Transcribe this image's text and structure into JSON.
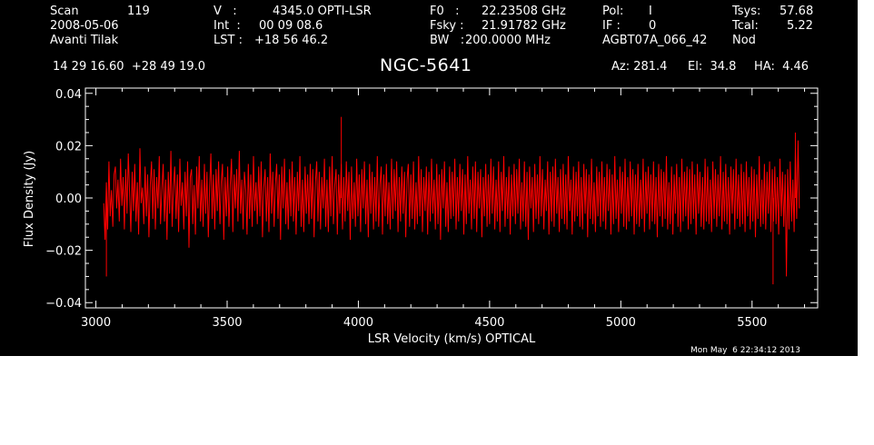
{
  "header": {
    "scan_label": "Scan",
    "scan_value": "119",
    "date": "2008-05-06",
    "observer": "Avanti Tilak",
    "v_label": "V   :",
    "v_value": "4345.0 OPTI-LSR",
    "int_label": "Int  :",
    "int_value": "00 09 08.6",
    "lst_label": "LST :",
    "lst_value": "+18 56 46.2",
    "f0_label": "F0   :",
    "f0_value": "22.23508 GHz",
    "fsky_label": "Fsky :",
    "fsky_value": "21.91782 GHz",
    "bw_label": "BW   :",
    "bw_value": "200.0000 MHz",
    "pol_label": "Pol:",
    "pol_value": "I",
    "if_label": "IF :",
    "if_value": "0",
    "project": "AGBT07A_066_42",
    "tsys_label": "Tsys:",
    "tsys_value": "57.68",
    "tcal_label": "Tcal:",
    "tcal_value": "5.22",
    "procedure": "Nod",
    "coords": "14 29 16.60  +28 49 19.0",
    "az": "Az: 281.4",
    "el": "El:  34.8",
    "ha": "HA:  4.46"
  },
  "timestamp": "Mon May  6 22:34:12 2013",
  "chart_data": {
    "type": "line",
    "title": "NGC-5641",
    "xlabel": "LSR Velocity (km/s) OPTICAL",
    "ylabel": "Flux Density (Jy)",
    "xlim": [
      2960,
      5750
    ],
    "ylim": [
      -0.042,
      0.042
    ],
    "xticks": [
      3000,
      3500,
      4000,
      4500,
      5000,
      5500
    ],
    "xtick_labels": [
      "3000",
      "3500",
      "4000",
      "4500",
      "5000",
      "5500"
    ],
    "yticks": [
      -0.04,
      -0.02,
      0.0,
      0.02,
      0.04
    ],
    "ytick_labels": [
      "−0.04",
      "−0.02",
      "0.00",
      "0.02",
      "0.04"
    ],
    "grid": false,
    "series": [
      {
        "color": "#ff0000",
        "x_start": 3030,
        "x_end": 5680,
        "y": [
          -0.002,
          -0.016,
          0.006,
          -0.012,
          0.014,
          -0.007,
          0.003,
          -0.011,
          0.009,
          0.012,
          -0.004,
          0.007,
          -0.009,
          0.015,
          -0.003,
          0.008,
          -0.012,
          0.011,
          -0.006,
          0.017,
          0.002,
          -0.013,
          0.01,
          -0.005,
          0.013,
          -0.009,
          0.006,
          -0.014,
          0.019,
          -0.002,
          0.004,
          -0.01,
          0.012,
          -0.007,
          0.009,
          -0.015,
          0.005,
          0.014,
          -0.008,
          0.011,
          -0.012,
          0.008,
          -0.004,
          0.016,
          -0.01,
          0.003,
          0.013,
          -0.009,
          0.007,
          -0.016,
          0.01,
          -0.006,
          0.018,
          -0.011,
          0.004,
          0.012,
          -0.008,
          0.009,
          -0.013,
          0.015,
          -0.003,
          0.006,
          -0.012,
          0.01,
          -0.007,
          0.014,
          -0.019,
          0.008,
          0.011,
          -0.01,
          0.005,
          -0.014,
          0.012,
          -0.004,
          0.016,
          -0.009,
          0.007,
          -0.011,
          0.013,
          -0.006,
          0.01,
          -0.015,
          0.004,
          0.017,
          -0.008,
          0.009,
          -0.012,
          0.011,
          -0.005,
          0.014,
          -0.01,
          0.006,
          0.013,
          -0.016,
          0.008,
          -0.007,
          0.012,
          -0.011,
          0.005,
          0.015,
          -0.013,
          0.009,
          -0.004,
          0.011,
          -0.009,
          0.018,
          -0.006,
          0.007,
          -0.012,
          0.01,
          0.003,
          -0.014,
          0.013,
          -0.008,
          0.009,
          -0.011,
          0.016,
          -0.005,
          0.006,
          -0.01,
          0.012,
          -0.007,
          0.014,
          -0.015,
          0.004,
          0.011,
          -0.009,
          0.008,
          -0.013,
          0.017,
          -0.006,
          0.01,
          -0.011,
          0.005,
          0.013,
          -0.008,
          0.009,
          -0.016,
          0.012,
          -0.004,
          0.015,
          -0.01,
          0.006,
          -0.012,
          0.011,
          -0.007,
          0.014,
          -0.009,
          0.008,
          -0.014,
          0.01,
          -0.005,
          0.016,
          -0.011,
          0.007,
          -0.013,
          0.012,
          -0.006,
          0.009,
          -0.01,
          0.013,
          -0.008,
          0.011,
          -0.015,
          0.006,
          0.014,
          -0.009,
          0.01,
          -0.012,
          0.008,
          -0.004,
          0.015,
          -0.011,
          0.007,
          -0.013,
          0.012,
          -0.007,
          0.016,
          -0.01,
          0.005,
          0.011,
          -0.014,
          0.009,
          -0.006,
          0.013,
          -0.012,
          0.008,
          -0.009,
          0.014,
          -0.005,
          0.01,
          -0.016,
          0.012,
          -0.008,
          0.006,
          -0.011,
          0.015,
          -0.007,
          0.009,
          -0.013,
          0.011,
          -0.004,
          0.014,
          -0.01,
          0.007,
          -0.015,
          0.013,
          -0.006,
          0.01,
          -0.012,
          0.008,
          -0.009,
          0.016,
          -0.011,
          0.005,
          0.012,
          -0.014,
          0.009,
          -0.007,
          0.013,
          -0.01,
          0.006,
          -0.012,
          0.015,
          -0.008,
          0.011,
          -0.005,
          0.014,
          -0.013,
          0.008,
          -0.009,
          0.012,
          -0.006,
          0.01,
          -0.015,
          0.007,
          0.013,
          -0.011,
          0.009,
          -0.008,
          0.014,
          -0.012,
          0.006,
          -0.01,
          0.016,
          -0.007,
          0.011,
          -0.013,
          0.008,
          -0.005,
          0.012,
          -0.014,
          0.01,
          -0.009,
          0.015,
          -0.006,
          0.007,
          -0.012,
          0.013,
          -0.01,
          0.009,
          -0.016,
          0.011,
          -0.004,
          0.014,
          -0.011,
          0.006,
          -0.013,
          0.012,
          -0.008,
          0.01,
          -0.007,
          0.015,
          -0.012,
          0.008,
          -0.009,
          0.013,
          -0.005,
          0.011,
          -0.014,
          0.009,
          -0.01,
          0.016,
          -0.006,
          0.007,
          -0.012,
          0.012,
          -0.008,
          0.014,
          -0.013,
          0.01,
          -0.004,
          0.011,
          -0.015,
          0.008,
          -0.007,
          0.013,
          -0.011,
          0.009,
          -0.01,
          0.015,
          -0.006,
          0.012,
          -0.012,
          0.007,
          -0.009,
          0.014,
          -0.013,
          0.01,
          -0.005,
          0.016,
          -0.011,
          0.008,
          -0.008,
          0.012,
          -0.014,
          0.009,
          -0.007,
          0.013,
          -0.01,
          0.011,
          -0.006,
          0.015,
          -0.012,
          0.006,
          -0.009,
          0.014,
          -0.011,
          0.01,
          -0.016,
          0.012,
          -0.004,
          0.008,
          -0.013,
          0.013,
          -0.008,
          0.009,
          -0.01,
          0.016,
          -0.007,
          0.011,
          -0.012,
          0.007,
          -0.005,
          0.014,
          -0.014,
          0.01,
          -0.009,
          0.012,
          -0.011,
          0.015,
          -0.006,
          0.008,
          -0.013,
          0.011,
          -0.008,
          0.013,
          -0.01,
          0.009,
          -0.012,
          0.016,
          -0.005,
          0.007,
          -0.014,
          0.012,
          -0.009,
          0.01,
          -0.007,
          0.014,
          -0.011,
          0.008,
          -0.012,
          0.013,
          -0.006,
          0.011,
          -0.015,
          0.009,
          -0.008,
          0.015,
          -0.01,
          0.006,
          -0.013,
          0.012,
          -0.007,
          0.01,
          -0.011,
          0.014,
          -0.009,
          0.008,
          -0.012,
          0.013,
          -0.005,
          0.011,
          -0.014,
          0.009,
          -0.01,
          0.016,
          -0.008,
          0.007,
          -0.013,
          0.012,
          -0.006,
          0.01,
          -0.011,
          0.015,
          -0.012,
          0.008,
          -0.009,
          0.014,
          -0.007,
          0.011,
          -0.014,
          0.009,
          -0.01,
          0.013,
          -0.011,
          0.007,
          -0.008,
          0.015,
          -0.013,
          0.01,
          -0.006,
          0.012,
          -0.012,
          0.009,
          -0.009,
          0.014,
          -0.01,
          0.008,
          -0.015,
          0.013,
          -0.007,
          0.011,
          -0.011,
          0.01,
          -0.008,
          0.016,
          -0.012,
          0.006,
          -0.01,
          0.012,
          -0.014,
          0.009,
          -0.006,
          0.013,
          -0.011,
          0.008,
          -0.013,
          0.015,
          -0.009,
          0.01,
          -0.007,
          0.012,
          -0.012,
          0.011,
          -0.01,
          0.014,
          -0.008,
          0.009,
          -0.014,
          0.013,
          -0.006,
          0.01,
          -0.011,
          0.008,
          -0.012,
          0.015,
          -0.009,
          0.012,
          -0.01,
          0.007,
          -0.013,
          0.014,
          -0.008,
          0.011,
          -0.011,
          0.009,
          -0.007,
          0.016,
          -0.012,
          0.01,
          -0.009,
          0.013,
          -0.01,
          0.008,
          -0.014,
          0.012,
          -0.006,
          0.011,
          -0.012,
          0.015,
          -0.008,
          0.009,
          -0.011,
          0.013,
          -0.01,
          0.01,
          -0.013,
          0.014,
          -0.007,
          0.008,
          -0.012,
          0.012,
          -0.009,
          0.011,
          -0.015,
          0.009,
          -0.008,
          0.016,
          -0.011,
          0.007,
          -0.01,
          0.013,
          -0.012,
          0.01,
          -0.006,
          0.014,
          -0.013,
          0.011,
          -0.009,
          0.012,
          -0.01,
          0.008,
          -0.014,
          0.015,
          -0.007,
          0.01,
          -0.011,
          0.009,
          -0.03,
          0.011,
          -0.012,
          0.014,
          -0.009,
          0.007,
          -0.013,
          0.019,
          -0.008,
          0.022,
          -0.004
        ]
      }
    ],
    "spike_markers": [
      {
        "x": 3040,
        "y": -0.03
      },
      {
        "x": 3935,
        "y": 0.031
      },
      {
        "x": 5580,
        "y": -0.033
      },
      {
        "x": 5665,
        "y": 0.025
      }
    ]
  }
}
